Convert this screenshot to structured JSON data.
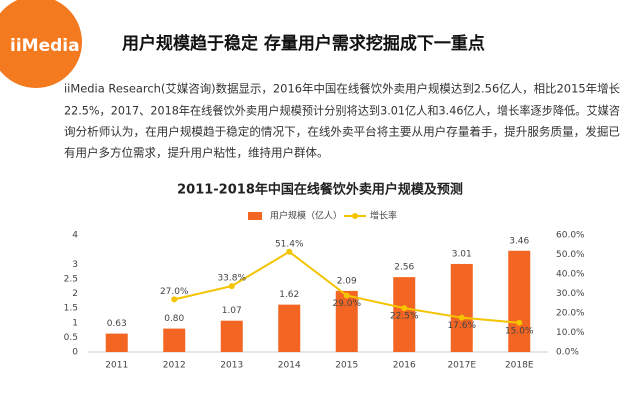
{
  "header": {
    "logo": "iiMedia",
    "title": "用户规模趋于稳定 存量用户需求挖掘成下一重点",
    "paragraph": [
      "iiMedia Research(艾媒咨询)数据显示，2016年中国在线餐饮外卖用户规模达到2.56亿人，相比2015年增长",
      "22.5%，2017、2018年在线餐饮外卖用户规模预计分别将达到3.01亿人和3.46亿人，增长率逐步降低。艾媒咨",
      "询分析师认为，在用户规模趋于稳定的情况下，在线外卖平台将主要从用户存量着手，提升服务质量，发掘已",
      "有用户多方位需求，提升用户粘性，维持用户群体。"
    ]
  },
  "chart_data": {
    "type": "bar",
    "title": "2011-2018年中国在线餐饮外卖用户规模及预测",
    "categories": [
      "2011",
      "2012",
      "2013",
      "2014",
      "2015",
      "2016",
      "2017E",
      "2018E"
    ],
    "series": [
      {
        "name": "用户规模（亿人）",
        "color": "#f26522",
        "type": "bar",
        "values": [
          0.63,
          0.8,
          1.07,
          1.62,
          2.09,
          2.56,
          3.01,
          3.46
        ],
        "value_labels": [
          "0.63",
          "0.80",
          "1.07",
          "1.62",
          "2.09",
          "2.56",
          "3.01",
          "3.46"
        ]
      },
      {
        "name": "增长率",
        "color": "#f5c400",
        "type": "line",
        "axis": "y2",
        "values": [
          null,
          27.0,
          33.8,
          51.4,
          29.0,
          22.5,
          17.6,
          15.0
        ],
        "value_labels": [
          null,
          "27.0%",
          "33.8%",
          "51.4%",
          "29.0%",
          "22.5%",
          "17.6%",
          "15.0%"
        ]
      }
    ],
    "ylim": [
      0,
      4
    ],
    "yticks": [
      0,
      0.5,
      1,
      1.5,
      2,
      2.5,
      3,
      4
    ],
    "y2lim": [
      0,
      60
    ],
    "y2ticks": [
      {
        "value": 0,
        "label": "0.0%"
      },
      {
        "value": 10,
        "label": "10.0%"
      },
      {
        "value": 20,
        "label": "20.0%"
      },
      {
        "value": 30,
        "label": "30.0%"
      },
      {
        "value": 40,
        "label": "40.0%"
      },
      {
        "value": 50,
        "label": "50.0%"
      },
      {
        "value": 60,
        "label": "60.0%"
      }
    ],
    "legend": "top"
  }
}
